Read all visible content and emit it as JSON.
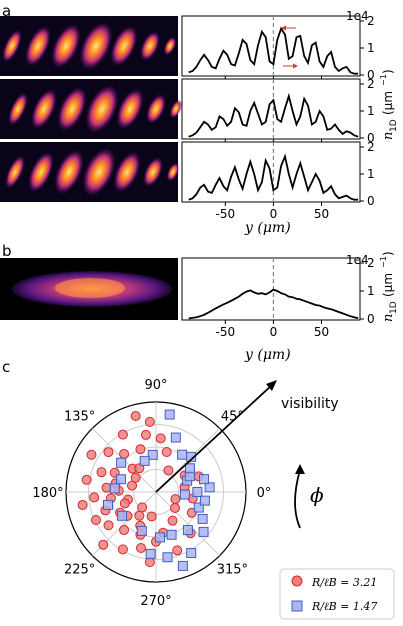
{
  "panels": {
    "a": "a",
    "b": "b",
    "c": "c"
  },
  "axis_text": {
    "x_label": "y (μm)",
    "n1d_label_a": "n",
    "n1d_sub": "1D",
    "n1d_unit": "(μm",
    "n1d_unit_exp": "−1",
    "n1d_unit_close": ")",
    "exp_label": "1e4",
    "visibility": "visibility",
    "phi": "ϕ"
  },
  "colors": {
    "red_marker": "#f08080",
    "red_edge": "#d62728",
    "blue_marker": "#aab4f0",
    "blue_edge": "#4060c0",
    "dashed": "#888888",
    "arrow_red": "#e03030"
  },
  "chart_data": [
    {
      "type": "line",
      "panel": "a-top",
      "xlim": [
        -95,
        90
      ],
      "ylim": [
        0,
        2
      ],
      "y_scale_label": "1e4",
      "xticks": [
        -50,
        0,
        50
      ],
      "yticks": [
        0,
        1,
        2
      ],
      "x": [
        -88,
        -84,
        -80,
        -76,
        -72,
        -68,
        -64,
        -60,
        -56,
        -52,
        -48,
        -44,
        -40,
        -36,
        -32,
        -28,
        -24,
        -20,
        -16,
        -12,
        -8,
        -4,
        0,
        4,
        8,
        12,
        16,
        20,
        24,
        28,
        32,
        36,
        40,
        44,
        48,
        52,
        56,
        60,
        64,
        68,
        72,
        76,
        80,
        84,
        88
      ],
      "values": [
        0.1,
        0.15,
        0.3,
        0.55,
        0.75,
        0.55,
        0.3,
        0.25,
        0.6,
        0.9,
        0.75,
        0.4,
        0.35,
        0.8,
        1.3,
        1.15,
        0.55,
        0.4,
        1.1,
        1.6,
        1.4,
        0.5,
        0.4,
        1.3,
        1.72,
        1.5,
        0.6,
        0.7,
        1.4,
        1.45,
        0.7,
        0.45,
        1.1,
        1.2,
        0.5,
        0.3,
        0.7,
        0.85,
        0.3,
        0.15,
        0.25,
        0.3,
        0.1,
        0.05,
        0.05
      ]
    },
    {
      "type": "line",
      "panel": "a-middle",
      "xlim": [
        -95,
        90
      ],
      "ylim": [
        0,
        2
      ],
      "yticks": [
        0,
        1,
        2
      ],
      "x": [
        -88,
        -84,
        -80,
        -76,
        -72,
        -68,
        -64,
        -60,
        -56,
        -52,
        -48,
        -44,
        -40,
        -36,
        -32,
        -28,
        -24,
        -20,
        -16,
        -12,
        -8,
        -4,
        0,
        4,
        8,
        12,
        16,
        20,
        24,
        28,
        32,
        36,
        40,
        44,
        48,
        52,
        56,
        60,
        64,
        68,
        72,
        76,
        80,
        84,
        88
      ],
      "values": [
        0.05,
        0.1,
        0.2,
        0.4,
        0.6,
        0.5,
        0.3,
        0.4,
        0.8,
        0.7,
        0.45,
        0.6,
        1.1,
        0.95,
        0.5,
        0.45,
        1.0,
        1.3,
        0.9,
        0.5,
        0.6,
        1.25,
        1.4,
        0.7,
        0.6,
        1.1,
        1.55,
        1.0,
        0.5,
        0.8,
        1.45,
        1.2,
        0.5,
        0.6,
        1.0,
        0.8,
        0.3,
        0.35,
        0.5,
        0.3,
        0.15,
        0.25,
        0.2,
        0.1,
        0.05
      ]
    },
    {
      "type": "line",
      "panel": "a-bottom",
      "xlim": [
        -95,
        90
      ],
      "ylim": [
        0,
        2
      ],
      "yticks": [
        0,
        1,
        2
      ],
      "x": [
        -88,
        -84,
        -80,
        -76,
        -72,
        -68,
        -64,
        -60,
        -56,
        -52,
        -48,
        -44,
        -40,
        -36,
        -32,
        -28,
        -24,
        -20,
        -16,
        -12,
        -8,
        -4,
        0,
        4,
        8,
        12,
        16,
        20,
        24,
        28,
        32,
        36,
        40,
        44,
        48,
        52,
        56,
        60,
        64,
        68,
        72,
        76,
        80,
        84,
        88
      ],
      "values": [
        0.05,
        0.1,
        0.25,
        0.5,
        0.6,
        0.35,
        0.3,
        0.6,
        0.85,
        0.55,
        0.4,
        0.9,
        1.25,
        0.8,
        0.45,
        1.0,
        1.45,
        1.0,
        0.4,
        0.7,
        1.5,
        1.2,
        0.4,
        0.5,
        1.3,
        1.65,
        1.0,
        0.5,
        1.0,
        1.4,
        0.9,
        0.4,
        0.7,
        1.0,
        0.75,
        0.3,
        0.4,
        0.55,
        0.25,
        0.1,
        0.15,
        0.2,
        0.1,
        0.05,
        0.05
      ]
    },
    {
      "type": "line",
      "panel": "b",
      "xlim": [
        -95,
        90
      ],
      "ylim": [
        0,
        2
      ],
      "y_scale_label": "1e4",
      "xticks": [
        -50,
        0,
        50
      ],
      "yticks": [
        0,
        1,
        2
      ],
      "x": [
        -88,
        -84,
        -80,
        -76,
        -72,
        -68,
        -64,
        -60,
        -56,
        -52,
        -48,
        -44,
        -40,
        -36,
        -32,
        -28,
        -24,
        -20,
        -16,
        -12,
        -8,
        -4,
        0,
        4,
        8,
        12,
        16,
        20,
        24,
        28,
        32,
        36,
        40,
        44,
        48,
        52,
        56,
        60,
        64,
        68,
        72,
        76,
        80,
        84,
        88
      ],
      "values": [
        0.02,
        0.04,
        0.06,
        0.1,
        0.15,
        0.22,
        0.3,
        0.38,
        0.45,
        0.52,
        0.58,
        0.65,
        0.72,
        0.8,
        0.9,
        0.98,
        1.02,
        0.95,
        0.9,
        0.92,
        0.88,
        0.95,
        1.05,
        1.0,
        0.92,
        0.88,
        0.8,
        0.78,
        0.72,
        0.7,
        0.65,
        0.6,
        0.55,
        0.5,
        0.48,
        0.42,
        0.38,
        0.35,
        0.3,
        0.25,
        0.2,
        0.15,
        0.1,
        0.06,
        0.03
      ]
    },
    {
      "type": "scatter",
      "panel": "c",
      "projection": "polar",
      "angle_ticks": [
        "0°",
        "45°",
        "90°",
        "135°",
        "180°",
        "225°",
        "270°",
        "315°"
      ],
      "rlim": [
        0,
        1
      ],
      "legend_position": "lower-right",
      "series": [
        {
          "name": "R/ℓB = 3.21",
          "color": "#f08080",
          "points_phi_deg_r": [
            [
              95,
              0.85
            ],
            [
              100,
              0.7
            ],
            [
              110,
              0.55
            ],
            [
              120,
              0.8
            ],
            [
              130,
              0.6
            ],
            [
              135,
              0.4
            ],
            [
              140,
              0.75
            ],
            [
              150,
              0.9
            ],
            [
              155,
              0.55
            ],
            [
              160,
              0.7
            ],
            [
              165,
              0.3
            ],
            [
              170,
              0.85
            ],
            [
              175,
              0.6
            ],
            [
              178,
              0.45
            ],
            [
              185,
              0.75
            ],
            [
              188,
              0.55
            ],
            [
              190,
              0.9
            ],
            [
              195,
              0.35
            ],
            [
              200,
              0.65
            ],
            [
              205,
              0.8
            ],
            [
              210,
              0.5
            ],
            [
              215,
              0.7
            ],
            [
              220,
              0.45
            ],
            [
              225,
              0.9
            ],
            [
              230,
              0.6
            ],
            [
              235,
              0.35
            ],
            [
              240,
              0.8
            ],
            [
              250,
              0.55
            ],
            [
              255,
              0.7
            ],
            [
              260,
              0.3
            ],
            [
              265,
              0.85
            ],
            [
              270,
              0.6
            ],
            [
              280,
              0.5
            ],
            [
              290,
              0.75
            ],
            [
              300,
              0.4
            ],
            [
              310,
              0.65
            ],
            [
              320,
              0.3
            ],
            [
              330,
              0.5
            ],
            [
              340,
              0.25
            ],
            [
              350,
              0.45
            ],
            [
              10,
              0.35
            ],
            [
              20,
              0.55
            ],
            [
              30,
              0.4
            ],
            [
              60,
              0.3
            ],
            [
              75,
              0.5
            ],
            [
              85,
              0.65
            ],
            [
              105,
              0.95
            ],
            [
              125,
              0.35
            ],
            [
              145,
              0.3
            ],
            [
              168,
              0.5
            ],
            [
              200,
              0.4
            ],
            [
              228,
              0.25
            ],
            [
              245,
              0.45
            ]
          ]
        },
        {
          "name": "R/ℓB = 1.47",
          "color": "#aab4f0",
          "points_phi_deg_r": [
            [
              80,
              0.95
            ],
            [
              95,
              0.45
            ],
            [
              110,
              0.4
            ],
            [
              140,
              0.55
            ],
            [
              160,
              0.45
            ],
            [
              175,
              0.5
            ],
            [
              195,
              0.6
            ],
            [
              215,
              0.5
            ],
            [
              250,
              0.5
            ],
            [
              265,
              0.75
            ],
            [
              280,
              0.8
            ],
            [
              290,
              0.55
            ],
            [
              300,
              0.85
            ],
            [
              310,
              0.6
            ],
            [
              320,
              0.75
            ],
            [
              330,
              0.65
            ],
            [
              340,
              0.55
            ],
            [
              350,
              0.6
            ],
            [
              355,
              0.35
            ],
            [
              0,
              0.5
            ],
            [
              5,
              0.65
            ],
            [
              15,
              0.6
            ],
            [
              20,
              0.4
            ],
            [
              25,
              0.45
            ],
            [
              35,
              0.5
            ],
            [
              45,
              0.6
            ],
            [
              55,
              0.55
            ],
            [
              70,
              0.7
            ],
            [
              290,
              0.95
            ],
            [
              275,
              0.55
            ]
          ]
        }
      ]
    }
  ]
}
